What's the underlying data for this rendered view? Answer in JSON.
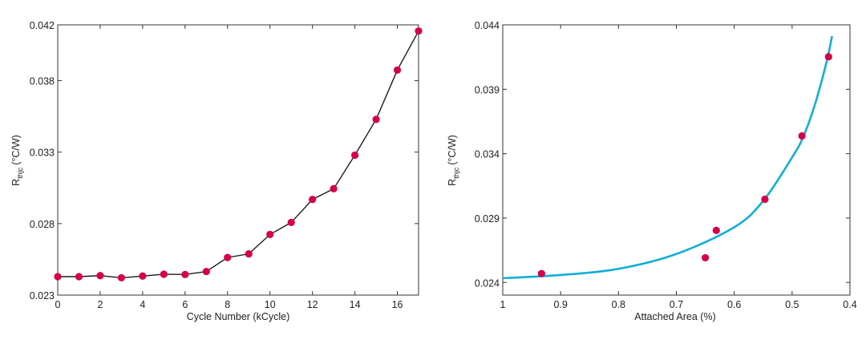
{
  "chart_data": [
    {
      "type": "line",
      "xlabel": "Cycle Number (kCycle)",
      "ylabel_main": "R",
      "ylabel_sub": "thjc",
      "ylabel_unit": "(°C/W)",
      "xlim": [
        0,
        17
      ],
      "ylim": [
        0.023,
        0.0419
      ],
      "xticks": [
        0,
        2,
        4,
        6,
        8,
        10,
        12,
        14,
        16
      ],
      "xtick_labels": [
        "0",
        "2",
        "4",
        "6",
        "8",
        "10",
        "12",
        "14",
        "16"
      ],
      "yticks": [
        0.023,
        0.028,
        0.033,
        0.038,
        0.0419
      ],
      "ytick_labels": [
        "0.023",
        "0.028",
        "0.033",
        "0.038",
        "0.042"
      ],
      "grid": false,
      "line_color": "#1a1a1a",
      "marker_color": "#d6004a",
      "x": [
        0,
        1,
        2,
        3,
        4,
        5,
        6,
        7,
        8,
        9,
        10,
        11,
        12,
        13,
        14,
        15,
        16,
        17
      ],
      "y": [
        0.02429,
        0.02429,
        0.02436,
        0.02421,
        0.02433,
        0.02446,
        0.02444,
        0.02465,
        0.02563,
        0.02588,
        0.02724,
        0.02808,
        0.02969,
        0.03044,
        0.03279,
        0.03529,
        0.03874,
        0.04147
      ]
    },
    {
      "type": "scatter",
      "xlabel": "Attached Area (%)",
      "ylabel_main": "R",
      "ylabel_sub": "thjc",
      "ylabel_unit": "(°C/W)",
      "xlim": [
        1,
        0.4
      ],
      "x_reversed": true,
      "ylim": [
        0.02302,
        0.044
      ],
      "xticks": [
        1,
        0.9,
        0.8,
        0.7,
        0.6,
        0.5,
        0.4
      ],
      "xtick_labels": [
        "1",
        "0.9",
        "0.8",
        "0.7",
        "0.6",
        "0.5",
        "0.4"
      ],
      "yticks": [
        0.024,
        0.029,
        0.034,
        0.039,
        0.044
      ],
      "ytick_labels": [
        "0.024",
        "0.029",
        "0.034",
        "0.039",
        "0.044"
      ],
      "grid": false,
      "marker_color": "#d6004a",
      "curve_color": "#12aed6",
      "points": {
        "x": [
          0.933,
          0.65,
          0.631,
          0.547,
          0.483,
          0.437
        ],
        "y": [
          0.02469,
          0.02592,
          0.02804,
          0.03046,
          0.03538,
          0.04152
        ]
      },
      "fit_curve": {
        "x": [
          1.0,
          0.9,
          0.8,
          0.7,
          0.6,
          0.55,
          0.5,
          0.48,
          0.46,
          0.44,
          0.431
        ],
        "y": [
          0.02433,
          0.02458,
          0.02506,
          0.02621,
          0.02829,
          0.03033,
          0.03371,
          0.03538,
          0.0379,
          0.0412,
          0.04313
        ]
      }
    }
  ]
}
